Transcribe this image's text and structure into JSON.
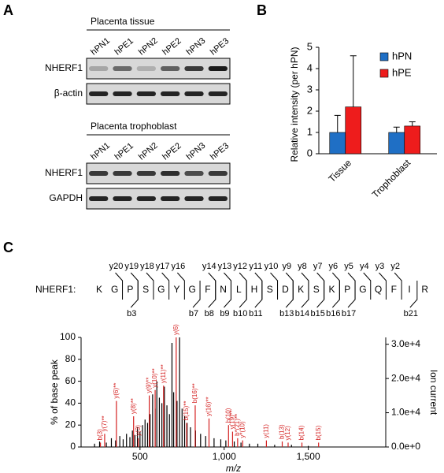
{
  "panel_labels": [
    "A",
    "B",
    "C"
  ],
  "blots": [
    {
      "title": "Placenta tissue",
      "lanes": [
        "hPN1",
        "hPE1",
        "hPN2",
        "hPE2",
        "hPN3",
        "hPE3"
      ],
      "rows": [
        "NHERF1",
        "β-actin"
      ]
    },
    {
      "title": "Placenta trophoblast",
      "lanes": [
        "hPN1",
        "hPE1",
        "hPN2",
        "hPE2",
        "hPN3",
        "hPE3"
      ],
      "rows": [
        "NHERF1",
        "GAPDH"
      ]
    }
  ],
  "peptide": {
    "label": "NHERF1:",
    "sequence": [
      "K",
      "G",
      "P",
      "S",
      "G",
      "Y",
      "G",
      "F",
      "N",
      "L",
      "H",
      "S",
      "D",
      "K",
      "S",
      "K",
      "P",
      "G",
      "Q",
      "F",
      "I",
      "R"
    ],
    "y_ions": [
      "y20",
      "y19",
      "y18",
      "y17",
      "y16",
      "y14",
      "y13",
      "y12",
      "y11",
      "y10",
      "y9",
      "y8",
      "y7",
      "y6",
      "y5",
      "y4",
      "y3",
      "y2"
    ],
    "b_ions": [
      "b3",
      "b7",
      "b8",
      "b9",
      "b10",
      "b11",
      "b13",
      "b14",
      "b15",
      "b16",
      "b17",
      "b21"
    ]
  },
  "chart_data": [
    {
      "type": "bar",
      "y_label": "Relative intensity (per hPN)",
      "categories": [
        "Tissue",
        "Trophoblast"
      ],
      "series": [
        {
          "name": "hPN",
          "color": "#1f6fc5",
          "values": [
            1.0,
            1.0
          ],
          "errors": [
            0.8,
            0.25
          ]
        },
        {
          "name": "hPE",
          "color": "#ee1c1c",
          "values": [
            2.2,
            1.3
          ],
          "errors": [
            2.4,
            0.2
          ]
        }
      ],
      "ylim": [
        0,
        5
      ],
      "yticks": [
        0,
        1,
        2,
        3,
        4,
        5
      ],
      "legend": "upper right"
    },
    {
      "type": "spectrum",
      "x_label": "m/z",
      "y_label": "% of base peak",
      "y2_label": "Ion current",
      "x": [
        230,
        260,
        300,
        330,
        355,
        380,
        400,
        420,
        440,
        455,
        470,
        485,
        500,
        515,
        530,
        545,
        560,
        575,
        590,
        600,
        615,
        630,
        645,
        660,
        675,
        690,
        700,
        720,
        735,
        750,
        765,
        780,
        800,
        830,
        860,
        890,
        940,
        980,
        1010,
        1060,
        1100,
        1150,
        1200,
        1300,
        1400,
        1500
      ],
      "values": [
        3,
        5,
        4,
        8,
        6,
        10,
        7,
        12,
        9,
        15,
        11,
        18,
        14,
        20,
        25,
        22,
        30,
        48,
        35,
        60,
        45,
        40,
        55,
        38,
        30,
        95,
        50,
        42,
        100,
        35,
        28,
        22,
        18,
        15,
        12,
        10,
        8,
        7,
        6,
        5,
        4,
        3,
        3,
        2,
        2,
        1
      ],
      "color": "#000000",
      "annotations": [
        {
          "x": 265,
          "value": 4,
          "label": "b(3)"
        },
        {
          "x": 290,
          "value": 12,
          "label": "y(7)**"
        },
        {
          "x": 360,
          "value": 42,
          "label": "y(6)**"
        },
        {
          "x": 462,
          "value": 28,
          "label": "y(8)**"
        },
        {
          "x": 490,
          "value": 8,
          "label": "y(3)"
        },
        {
          "x": 555,
          "value": 47,
          "label": "y(9)**"
        },
        {
          "x": 590,
          "value": 52,
          "label": "y(10)**"
        },
        {
          "x": 640,
          "value": 56,
          "label": "y(11)**"
        },
        {
          "x": 715,
          "value": 100,
          "label": "y(6)"
        },
        {
          "x": 777,
          "value": 22,
          "label": "b(15)**"
        },
        {
          "x": 828,
          "value": 38,
          "label": "b(16)**"
        },
        {
          "x": 910,
          "value": 26,
          "label": "y(16)**"
        },
        {
          "x": 1026,
          "value": 20,
          "label": "b(10)"
        },
        {
          "x": 1050,
          "value": 14,
          "label": "y(19)**"
        },
        {
          "x": 1080,
          "value": 8,
          "label": "b*(21)**"
        },
        {
          "x": 1110,
          "value": 6,
          "label": "y*(10)"
        },
        {
          "x": 1251,
          "value": 6,
          "label": "y(11)"
        },
        {
          "x": 1345,
          "value": 5,
          "label": "b(13)"
        },
        {
          "x": 1380,
          "value": 4,
          "label": "y(12)"
        },
        {
          "x": 1462,
          "value": 4,
          "label": "b(14)"
        },
        {
          "x": 1561,
          "value": 4,
          "label": "b(15)"
        }
      ],
      "annotation_color": "#d42020",
      "xlim": [
        150,
        1960
      ],
      "xticks": [
        500,
        {
          "value": 1000,
          "label": "1,000"
        },
        {
          "value": 1500,
          "label": "1,500"
        }
      ],
      "ylim": [
        0,
        100
      ],
      "yticks": [
        0,
        20,
        40,
        60,
        80,
        100
      ],
      "y2lim": [
        0,
        32000
      ],
      "y2ticks": [
        {
          "value": 0,
          "label": "0.0e+0"
        },
        {
          "value": 10000,
          "label": "1.0e+4"
        },
        {
          "value": 20000,
          "label": "2.0e+4"
        },
        {
          "value": 30000,
          "label": "3.0e+4"
        }
      ]
    }
  ]
}
